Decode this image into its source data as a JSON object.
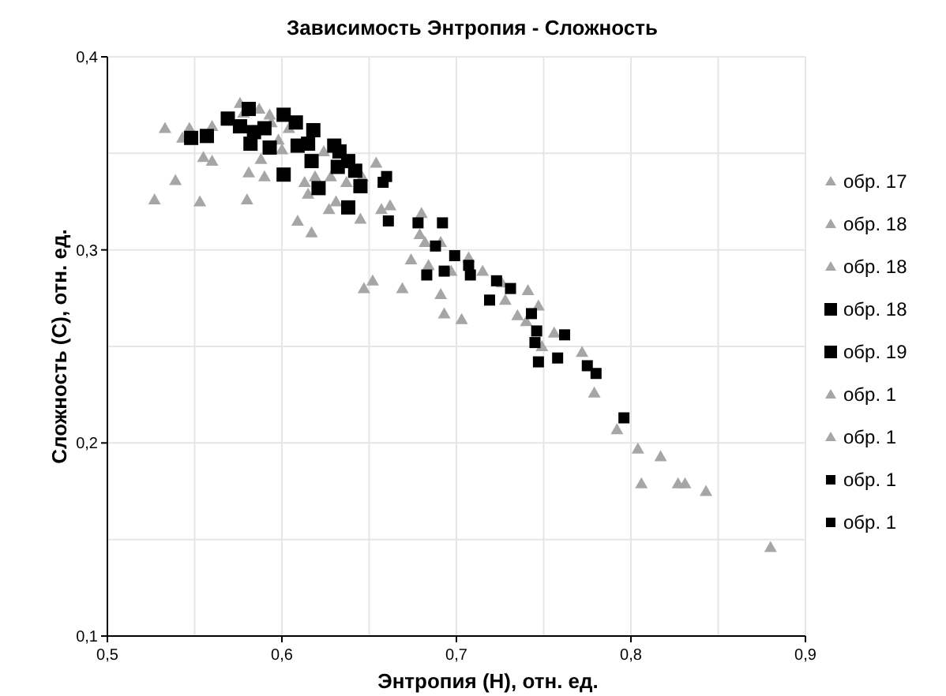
{
  "chart_data": {
    "type": "scatter",
    "title": "Зависимость Энтропия - Сложность",
    "xlabel": "Энтропия (H), отн. ед.",
    "ylabel": "Сложность (С), отн. ед.",
    "xlim": [
      0.5,
      0.9
    ],
    "ylim": [
      0.1,
      0.4
    ],
    "xticks": [
      {
        "value": 0.5,
        "label": "0,5"
      },
      {
        "value": 0.55,
        "label": null
      },
      {
        "value": 0.6,
        "label": "0,6"
      },
      {
        "value": 0.65,
        "label": null
      },
      {
        "value": 0.7,
        "label": "0,7"
      },
      {
        "value": 0.75,
        "label": null
      },
      {
        "value": 0.8,
        "label": "0,8"
      },
      {
        "value": 0.85,
        "label": null
      },
      {
        "value": 0.9,
        "label": "0,9"
      }
    ],
    "yticks": [
      {
        "value": 0.1,
        "label": "0,1"
      },
      {
        "value": 0.15,
        "label": null
      },
      {
        "value": 0.2,
        "label": "0,2"
      },
      {
        "value": 0.25,
        "label": null
      },
      {
        "value": 0.3,
        "label": "0,3"
      },
      {
        "value": 0.35,
        "label": null
      },
      {
        "value": 0.4,
        "label": "0,4"
      }
    ],
    "grid": true,
    "legend": "right",
    "series": [
      {
        "name": "обр. 17",
        "color": "#a6a6a6",
        "marker": "triangle",
        "x": [
          0.527,
          0.533,
          0.539,
          0.547,
          0.543,
          0.553,
          0.555,
          0.56,
          0.56,
          0.576,
          0.58,
          0.581,
          0.578,
          0.587
        ],
        "values": [
          0.326,
          0.363,
          0.336,
          0.363,
          0.358,
          0.325,
          0.348,
          0.346,
          0.364,
          0.376,
          0.326,
          0.34,
          0.371,
          0.373
        ]
      },
      {
        "name": "обр. 18",
        "color": "#a6a6a6",
        "marker": "triangle",
        "x": [
          0.588,
          0.59,
          0.593,
          0.594,
          0.6,
          0.598,
          0.604,
          0.609,
          0.613,
          0.615,
          0.617,
          0.619,
          0.624,
          0.627
        ],
        "values": [
          0.347,
          0.338,
          0.37,
          0.366,
          0.352,
          0.357,
          0.363,
          0.315,
          0.335,
          0.329,
          0.309,
          0.338,
          0.351,
          0.321
        ]
      },
      {
        "name": "обр. 18",
        "color": "#a6a6a6",
        "marker": "triangle",
        "x": [
          0.628,
          0.631,
          0.637,
          0.645,
          0.646,
          0.647,
          0.652,
          0.654,
          0.657,
          0.662,
          0.669,
          0.674,
          0.679,
          0.68
        ],
        "values": [
          0.338,
          0.325,
          0.335,
          0.316,
          0.338,
          0.28,
          0.284,
          0.345,
          0.321,
          0.323,
          0.28,
          0.295,
          0.308,
          0.319
        ]
      },
      {
        "name": "обр. 18",
        "color": "#000000",
        "marker": "square",
        "x": [
          0.548,
          0.557,
          0.569,
          0.576,
          0.581,
          0.582,
          0.584,
          0.59,
          0.593,
          0.601,
          0.601,
          0.608
        ],
        "values": [
          0.358,
          0.359,
          0.368,
          0.364,
          0.373,
          0.355,
          0.361,
          0.363,
          0.353,
          0.37,
          0.339,
          0.366
        ]
      },
      {
        "name": "обр. 19",
        "color": "#000000",
        "marker": "square",
        "x": [
          0.609,
          0.615,
          0.617,
          0.618,
          0.621,
          0.63,
          0.632,
          0.633,
          0.638,
          0.638,
          0.642,
          0.645
        ],
        "values": [
          0.354,
          0.355,
          0.346,
          0.362,
          0.332,
          0.354,
          0.343,
          0.351,
          0.346,
          0.322,
          0.341,
          0.333
        ]
      },
      {
        "name": "обр. 1",
        "color": "#a6a6a6",
        "marker": "triangle",
        "x": [
          0.682,
          0.684,
          0.691,
          0.693,
          0.691,
          0.697,
          0.703,
          0.707,
          0.715,
          0.726,
          0.728,
          0.735,
          0.74
        ],
        "values": [
          0.304,
          0.292,
          0.277,
          0.267,
          0.304,
          0.289,
          0.264,
          0.296,
          0.289,
          0.283,
          0.274,
          0.266,
          0.263
        ]
      },
      {
        "name": "обр. 1",
        "color": "#a6a6a6",
        "marker": "triangle",
        "x": [
          0.741,
          0.747,
          0.749,
          0.756,
          0.772,
          0.779,
          0.792,
          0.804,
          0.806,
          0.817,
          0.827,
          0.831,
          0.843,
          0.88
        ],
        "values": [
          0.279,
          0.271,
          0.25,
          0.257,
          0.247,
          0.226,
          0.207,
          0.197,
          0.179,
          0.193,
          0.179,
          0.179,
          0.175,
          0.146
        ]
      },
      {
        "name": "обр. 1",
        "color": "#000000",
        "marker": "square",
        "x": [
          0.658,
          0.66,
          0.661,
          0.678,
          0.688,
          0.692,
          0.683,
          0.693,
          0.699,
          0.707,
          0.708,
          0.719
        ],
        "values": [
          0.335,
          0.338,
          0.315,
          0.314,
          0.302,
          0.314,
          0.287,
          0.289,
          0.297,
          0.292,
          0.287,
          0.274
        ]
      },
      {
        "name": "обр. 1",
        "color": "#000000",
        "marker": "square",
        "x": [
          0.723,
          0.731,
          0.743,
          0.746,
          0.745,
          0.747,
          0.758,
          0.762,
          0.775,
          0.78,
          0.796
        ],
        "values": [
          0.284,
          0.28,
          0.267,
          0.258,
          0.252,
          0.242,
          0.244,
          0.256,
          0.24,
          0.236,
          0.213
        ]
      }
    ]
  }
}
